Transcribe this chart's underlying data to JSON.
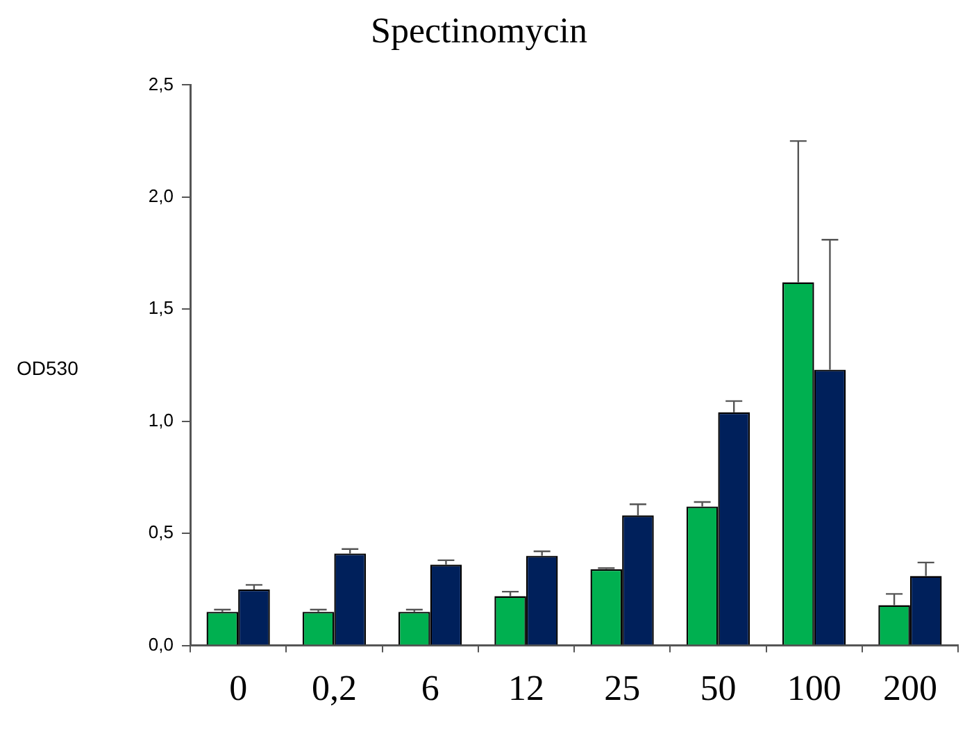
{
  "chart_data": {
    "type": "bar",
    "title": "Spectinomycin",
    "ylabel": "OD530",
    "categories": [
      "0",
      "0,2",
      "6",
      "12",
      "25",
      "50",
      "100",
      "200"
    ],
    "series": [
      {
        "color": "#00b050",
        "values": [
          0.15,
          0.15,
          0.15,
          0.22,
          0.34,
          0.62,
          1.62,
          0.18
        ],
        "errors": [
          [
            0.15,
            0.16
          ],
          [
            0.15,
            0.16
          ],
          [
            0.15,
            0.16
          ],
          [
            0.22,
            0.24
          ],
          [
            0.34,
            0.345
          ],
          [
            0.62,
            0.64
          ],
          [
            1.62,
            2.25
          ],
          [
            0.18,
            0.23
          ]
        ]
      },
      {
        "color": "#00205b",
        "values": [
          0.25,
          0.41,
          0.36,
          0.4,
          0.58,
          1.04,
          1.23,
          0.31
        ],
        "errors": [
          [
            0.25,
            0.27
          ],
          [
            0.41,
            0.43
          ],
          [
            0.36,
            0.38
          ],
          [
            0.4,
            0.42
          ],
          [
            0.58,
            0.63
          ],
          [
            1.04,
            1.09
          ],
          [
            1.23,
            1.81
          ],
          [
            0.31,
            0.37
          ]
        ]
      }
    ],
    "ylim": [
      0,
      2.5
    ],
    "yticks": [
      {
        "value": 0,
        "label": "0,0"
      },
      {
        "value": 0.5,
        "label": "0,5"
      },
      {
        "value": 1,
        "label": "1,0"
      },
      {
        "value": 1.5,
        "label": "1,5"
      },
      {
        "value": 2,
        "label": "2,0"
      },
      {
        "value": 2.5,
        "label": "2,5"
      }
    ],
    "grid": false,
    "legend": false
  }
}
